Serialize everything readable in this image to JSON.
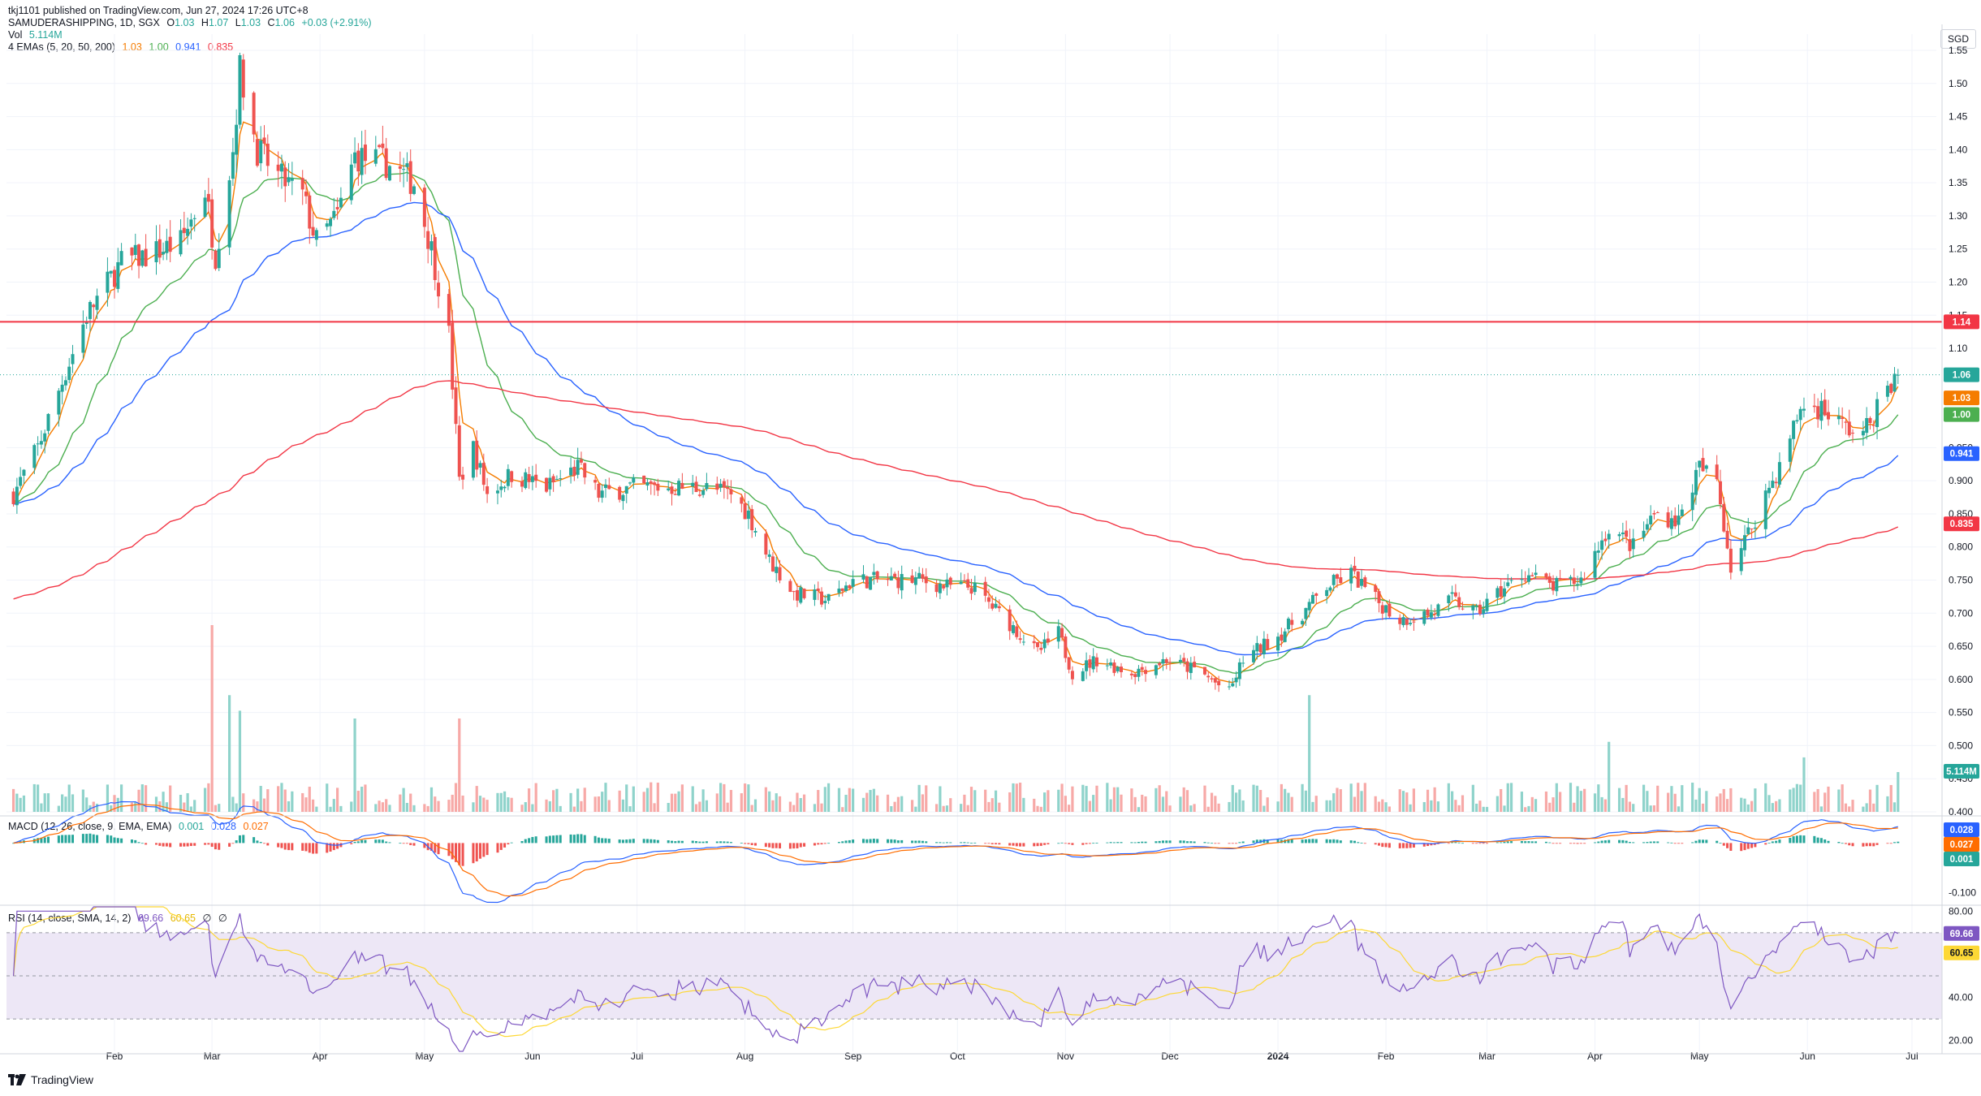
{
  "meta": {
    "published": "tkj1101 published on TradingView.com, Jun 27, 2024 17:26 UTC+8",
    "brand": "TradingView",
    "currency": "SGD"
  },
  "legend": {
    "symbol": "SAMUDERASHIPPING, 1D, SGX",
    "o_label": "O",
    "o": "1.03",
    "h_label": "H",
    "h": "1.07",
    "l_label": "L",
    "l": "1.03",
    "c_label": "C",
    "c": "1.06",
    "change": "+0.03 (+2.91%)",
    "vol_label": "Vol",
    "vol": "5.114M",
    "ema_label": "4 EMAs (5, 20, 50, 200)",
    "ema5": "1.03",
    "ema20": "1.00",
    "ema50": "0.941",
    "ema200": "0.835",
    "macd_label": "MACD (12, 26, close, 9, EMA, EMA)",
    "macd_hist": "0.001",
    "macd_line": "0.028",
    "macd_signal": "0.027",
    "rsi_label": "RSI (14, close, SMA, 14, 2)",
    "rsi": "69.66",
    "rsi_ma": "60.65",
    "rsi_u1": "∅",
    "rsi_u2": "∅"
  },
  "badges": {
    "resistance": "1.14",
    "close": "1.06",
    "ema5": "1.03",
    "ema20": "1.00",
    "ema50": "0.941",
    "ema200": "0.835",
    "volume": "5.114M",
    "macd_line": "0.028",
    "macd_signal": "0.027",
    "macd_hist": "0.001",
    "rsi": "69.66",
    "rsi_ma": "60.65"
  },
  "colors": {
    "up": "#26a69a",
    "down": "#ef5350",
    "up_vol": "#8fd3cb",
    "down_vol": "#f7a9a7",
    "ema5": "#f57c00",
    "ema20": "#4caf50",
    "ema50": "#2962ff",
    "ema200": "#f23645",
    "resistance": "#f23645",
    "macd": "#2962ff",
    "signal": "#ff6d00",
    "rsi": "#7e57c2",
    "rsi_ma": "#fdd835",
    "rsi_band": "#ede7f6"
  },
  "chart_data": {
    "type": "candlestick",
    "price_axis": {
      "ticks": [
        "1.55",
        "1.50",
        "1.45",
        "1.40",
        "1.35",
        "1.30",
        "1.25",
        "1.20",
        "1.15",
        "1.10",
        "0.950",
        "0.900",
        "0.850",
        "0.800",
        "0.750",
        "0.700",
        "0.650",
        "0.600",
        "0.550",
        "0.500",
        "0.450",
        "0.400"
      ],
      "range": [
        0.4,
        1.55
      ]
    },
    "time_axis": [
      "Feb",
      "Mar",
      "Apr",
      "May",
      "Jun",
      "Jul",
      "Aug",
      "Sep",
      "Oct",
      "Nov",
      "Dec",
      "2024",
      "Feb",
      "Mar",
      "Apr",
      "May",
      "Jun",
      "Jul"
    ],
    "resistance_level": 1.14,
    "close_anchors": [
      {
        "date": "2023-01-03",
        "close": 0.88
      },
      {
        "date": "2023-01-10",
        "close": 0.95
      },
      {
        "date": "2023-01-17",
        "close": 1.05
      },
      {
        "date": "2023-01-24",
        "close": 1.15
      },
      {
        "date": "2023-02-03",
        "close": 1.23
      },
      {
        "date": "2023-02-10",
        "close": 1.24
      },
      {
        "date": "2023-02-20",
        "close": 1.26
      },
      {
        "date": "2023-02-27",
        "close": 1.34
      },
      {
        "date": "2023-03-02",
        "close": 1.24
      },
      {
        "date": "2023-03-07",
        "close": 1.4
      },
      {
        "date": "2023-03-09",
        "close": 1.52
      },
      {
        "date": "2023-03-14",
        "close": 1.4
      },
      {
        "date": "2023-03-20",
        "close": 1.36
      },
      {
        "date": "2023-03-27",
        "close": 1.33
      },
      {
        "date": "2023-03-31",
        "close": 1.26
      },
      {
        "date": "2023-04-06",
        "close": 1.3
      },
      {
        "date": "2023-04-11",
        "close": 1.39
      },
      {
        "date": "2023-04-20",
        "close": 1.38
      },
      {
        "date": "2023-04-28",
        "close": 1.35
      },
      {
        "date": "2023-05-03",
        "close": 1.25
      },
      {
        "date": "2023-05-08",
        "close": 1.12
      },
      {
        "date": "2023-05-11",
        "close": 0.9
      },
      {
        "date": "2023-05-15",
        "close": 0.95
      },
      {
        "date": "2023-05-19",
        "close": 0.88
      },
      {
        "date": "2023-05-26",
        "close": 0.91
      },
      {
        "date": "2023-06-05",
        "close": 0.89
      },
      {
        "date": "2023-06-14",
        "close": 0.92
      },
      {
        "date": "2023-06-20",
        "close": 0.88
      },
      {
        "date": "2023-06-30",
        "close": 0.89
      },
      {
        "date": "2023-07-10",
        "close": 0.89
      },
      {
        "date": "2023-07-20",
        "close": 0.89
      },
      {
        "date": "2023-07-28",
        "close": 0.88
      },
      {
        "date": "2023-08-02",
        "close": 0.85
      },
      {
        "date": "2023-08-08",
        "close": 0.78
      },
      {
        "date": "2023-08-15",
        "close": 0.73
      },
      {
        "date": "2023-08-25",
        "close": 0.72
      },
      {
        "date": "2023-09-01",
        "close": 0.75
      },
      {
        "date": "2023-09-10",
        "close": 0.75
      },
      {
        "date": "2023-09-20",
        "close": 0.75
      },
      {
        "date": "2023-09-28",
        "close": 0.74
      },
      {
        "date": "2023-10-05",
        "close": 0.74
      },
      {
        "date": "2023-10-15",
        "close": 0.69
      },
      {
        "date": "2023-10-24",
        "close": 0.64
      },
      {
        "date": "2023-10-30",
        "close": 0.67
      },
      {
        "date": "2023-11-03",
        "close": 0.61
      },
      {
        "date": "2023-11-10",
        "close": 0.63
      },
      {
        "date": "2023-11-20",
        "close": 0.61
      },
      {
        "date": "2023-11-30",
        "close": 0.63
      },
      {
        "date": "2023-12-10",
        "close": 0.61
      },
      {
        "date": "2023-12-18",
        "close": 0.58
      },
      {
        "date": "2023-12-22",
        "close": 0.63
      },
      {
        "date": "2024-01-02",
        "close": 0.67
      },
      {
        "date": "2024-01-08",
        "close": 0.7
      },
      {
        "date": "2024-01-15",
        "close": 0.74
      },
      {
        "date": "2024-01-22",
        "close": 0.76
      },
      {
        "date": "2024-01-29",
        "close": 0.72
      },
      {
        "date": "2024-02-05",
        "close": 0.69
      },
      {
        "date": "2024-02-14",
        "close": 0.7
      },
      {
        "date": "2024-02-20",
        "close": 0.72
      },
      {
        "date": "2024-02-27",
        "close": 0.7
      },
      {
        "date": "2024-03-04",
        "close": 0.73
      },
      {
        "date": "2024-03-12",
        "close": 0.76
      },
      {
        "date": "2024-03-20",
        "close": 0.74
      },
      {
        "date": "2024-03-28",
        "close": 0.75
      },
      {
        "date": "2024-04-05",
        "close": 0.83
      },
      {
        "date": "2024-04-12",
        "close": 0.8
      },
      {
        "date": "2024-04-18",
        "close": 0.85
      },
      {
        "date": "2024-04-25",
        "close": 0.84
      },
      {
        "date": "2024-05-01",
        "close": 0.92
      },
      {
        "date": "2024-05-06",
        "close": 0.9
      },
      {
        "date": "2024-05-10",
        "close": 0.77
      },
      {
        "date": "2024-05-15",
        "close": 0.82
      },
      {
        "date": "2024-05-20",
        "close": 0.88
      },
      {
        "date": "2024-05-24",
        "close": 0.92
      },
      {
        "date": "2024-05-30",
        "close": 1.01
      },
      {
        "date": "2024-06-05",
        "close": 1.01
      },
      {
        "date": "2024-06-12",
        "close": 0.98
      },
      {
        "date": "2024-06-17",
        "close": 0.97
      },
      {
        "date": "2024-06-21",
        "close": 1.01
      },
      {
        "date": "2024-06-27",
        "close": 1.06
      }
    ],
    "volume_spikes_millions": [
      {
        "date": "2023-03-01",
        "volume": 24
      },
      {
        "date": "2023-03-06",
        "volume": 15
      },
      {
        "date": "2023-03-09",
        "volume": 13
      },
      {
        "date": "2023-04-11",
        "volume": 12
      },
      {
        "date": "2023-05-11",
        "volume": 12
      },
      {
        "date": "2024-01-10",
        "volume": 15
      },
      {
        "date": "2024-04-05",
        "volume": 9
      },
      {
        "date": "2024-05-31",
        "volume": 7
      }
    ],
    "macd_range": [
      -0.12,
      0.03
    ],
    "rsi_range": [
      15,
      82
    ],
    "rsi_levels": [
      70,
      50,
      30
    ]
  }
}
